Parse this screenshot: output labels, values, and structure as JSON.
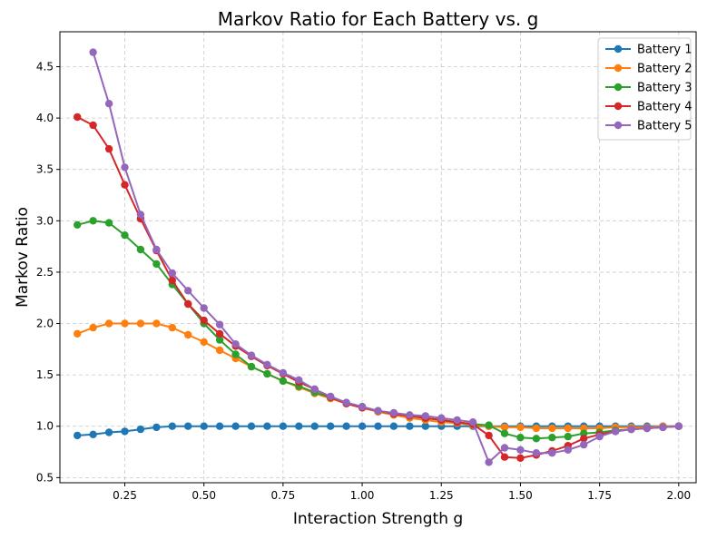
{
  "chart_data": {
    "type": "line",
    "title": "Markov Ratio for Each Battery vs. g",
    "xlabel": "Interaction Strength g",
    "ylabel": "Markov Ratio",
    "xlim": [
      0.045,
      2.055
    ],
    "ylim": [
      0.45,
      4.84
    ],
    "xticks": [
      0.25,
      0.5,
      0.75,
      1.0,
      1.25,
      1.5,
      1.75,
      2.0
    ],
    "xtick_labels": [
      "0.25",
      "0.50",
      "0.75",
      "1.00",
      "1.25",
      "1.50",
      "1.75",
      "2.00"
    ],
    "yticks": [
      0.5,
      1.0,
      1.5,
      2.0,
      2.5,
      3.0,
      3.5,
      4.0,
      4.5
    ],
    "ytick_labels": [
      "0.5",
      "1.0",
      "1.5",
      "2.0",
      "2.5",
      "3.0",
      "3.5",
      "4.0",
      "4.5"
    ],
    "grid": true,
    "legend_position": "top-right",
    "x": [
      0.1,
      0.15,
      0.2,
      0.25,
      0.3,
      0.35,
      0.4,
      0.45,
      0.5,
      0.55,
      0.6,
      0.65,
      0.7,
      0.75,
      0.8,
      0.85,
      0.9,
      0.95,
      1.0,
      1.05,
      1.1,
      1.15,
      1.2,
      1.25,
      1.3,
      1.35,
      1.4,
      1.45,
      1.5,
      1.55,
      1.6,
      1.65,
      1.7,
      1.75,
      1.8,
      1.85,
      1.9,
      1.95,
      2.0
    ],
    "series": [
      {
        "name": "Battery 1",
        "color": "#1f77b4",
        "values": [
          0.91,
          0.92,
          0.94,
          0.95,
          0.97,
          0.99,
          1.0,
          1.0,
          1.0,
          1.0,
          1.0,
          1.0,
          1.0,
          1.0,
          1.0,
          1.0,
          1.0,
          1.0,
          1.0,
          1.0,
          1.0,
          1.0,
          1.0,
          1.0,
          1.0,
          1.0,
          1.0,
          1.0,
          1.0,
          1.0,
          1.0,
          1.0,
          1.0,
          1.0,
          1.0,
          1.0,
          1.0,
          1.0,
          1.0
        ]
      },
      {
        "name": "Battery 2",
        "color": "#ff7f0e",
        "values": [
          1.9,
          1.96,
          2.0,
          2.0,
          2.0,
          2.0,
          1.96,
          1.89,
          1.82,
          1.74,
          1.66,
          1.58,
          1.51,
          1.44,
          1.38,
          1.32,
          1.27,
          1.22,
          1.18,
          1.14,
          1.11,
          1.08,
          1.06,
          1.04,
          1.03,
          1.01,
          1.0,
          0.99,
          0.99,
          0.98,
          0.98,
          0.98,
          0.98,
          0.98,
          0.99,
          0.99,
          0.99,
          1.0,
          1.0
        ]
      },
      {
        "name": "Battery 3",
        "color": "#2ca02c",
        "values": [
          2.96,
          3.0,
          2.98,
          2.86,
          2.72,
          2.58,
          2.38,
          2.19,
          2.0,
          1.84,
          1.7,
          1.58,
          1.51,
          1.44,
          1.39,
          1.33,
          1.28,
          1.23,
          1.19,
          1.15,
          1.12,
          1.1,
          1.08,
          1.06,
          1.04,
          1.02,
          1.01,
          0.93,
          0.89,
          0.88,
          0.89,
          0.9,
          0.93,
          0.94,
          0.96,
          0.97,
          0.98,
          0.99,
          1.0
        ]
      },
      {
        "name": "Battery 4",
        "color": "#d62728",
        "values": [
          4.01,
          3.93,
          3.7,
          3.35,
          3.02,
          2.71,
          2.42,
          2.19,
          2.03,
          1.9,
          1.78,
          1.68,
          1.59,
          1.51,
          1.43,
          1.36,
          1.28,
          1.22,
          1.18,
          1.15,
          1.12,
          1.1,
          1.08,
          1.06,
          1.04,
          1.02,
          0.91,
          0.7,
          0.69,
          0.72,
          0.76,
          0.81,
          0.88,
          0.92,
          0.95,
          0.97,
          0.98,
          0.99,
          1.0
        ]
      },
      {
        "name": "Battery 5",
        "color": "#9467bd",
        "values": [
          null,
          4.64,
          4.14,
          3.52,
          3.06,
          2.72,
          2.49,
          2.32,
          2.15,
          1.99,
          1.8,
          1.69,
          1.6,
          1.52,
          1.45,
          1.36,
          1.29,
          1.23,
          1.19,
          1.15,
          1.13,
          1.11,
          1.1,
          1.08,
          1.06,
          1.04,
          0.65,
          0.79,
          0.77,
          0.74,
          0.74,
          0.77,
          0.82,
          0.9,
          0.95,
          0.97,
          0.98,
          0.99,
          1.0
        ]
      }
    ]
  }
}
